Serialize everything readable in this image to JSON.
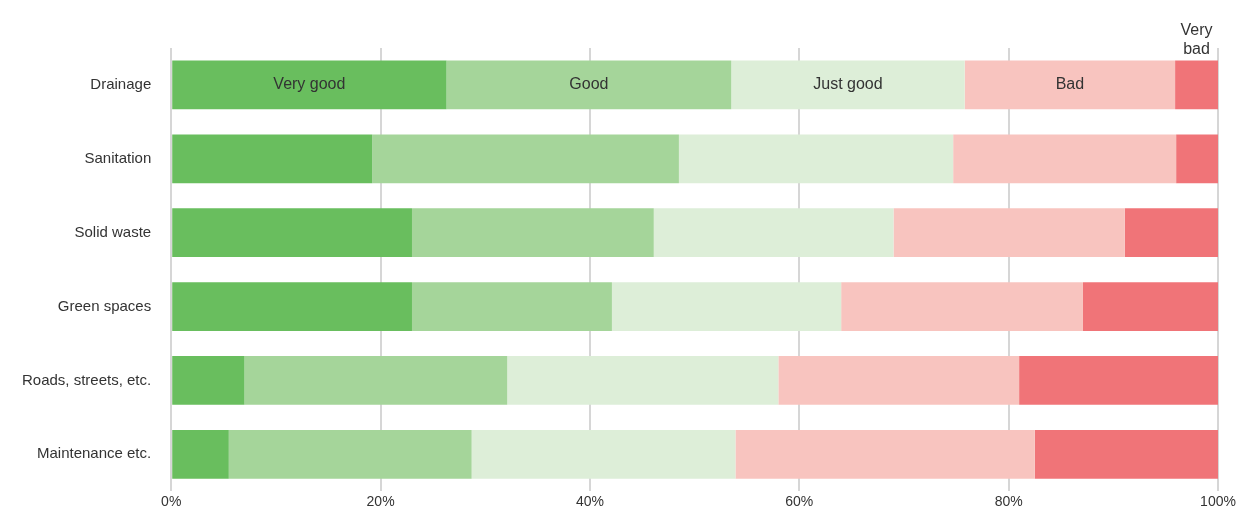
{
  "chart_data": {
    "type": "bar",
    "orientation": "horizontal",
    "stacked": true,
    "categories": [
      "Drainage",
      "Sanitation",
      "Solid waste",
      "Green spaces",
      "Roads, streets, etc.",
      "Maintenance etc."
    ],
    "series": [
      {
        "name": "Very good",
        "color": "#69be5e",
        "values": [
          26.3,
          19.2,
          23.0,
          23.0,
          7.0,
          5.5
        ]
      },
      {
        "name": "Good",
        "color": "#a5d59a",
        "values": [
          27.2,
          29.3,
          23.1,
          19.1,
          25.1,
          23.2
        ]
      },
      {
        "name": "Just good",
        "color": "#ddeed8",
        "values": [
          22.3,
          26.2,
          22.9,
          21.9,
          25.9,
          25.2
        ]
      },
      {
        "name": "Bad",
        "color": "#f8c4bf",
        "values": [
          20.1,
          21.3,
          22.1,
          23.1,
          23.0,
          28.6
        ]
      },
      {
        "name": "Very bad",
        "color": "#f07478",
        "values": [
          4.1,
          4.0,
          8.9,
          12.9,
          19.0,
          17.5
        ]
      }
    ],
    "xlim": [
      0,
      100
    ],
    "xticks": [
      {
        "value": 0,
        "label": "0%"
      },
      {
        "value": 20,
        "label": "20%"
      },
      {
        "value": 40,
        "label": "40%"
      },
      {
        "value": 60,
        "label": "60%"
      },
      {
        "value": 80,
        "label": "80%"
      },
      {
        "value": 100,
        "label": "100%"
      }
    ],
    "grid": "x",
    "legend": false
  }
}
